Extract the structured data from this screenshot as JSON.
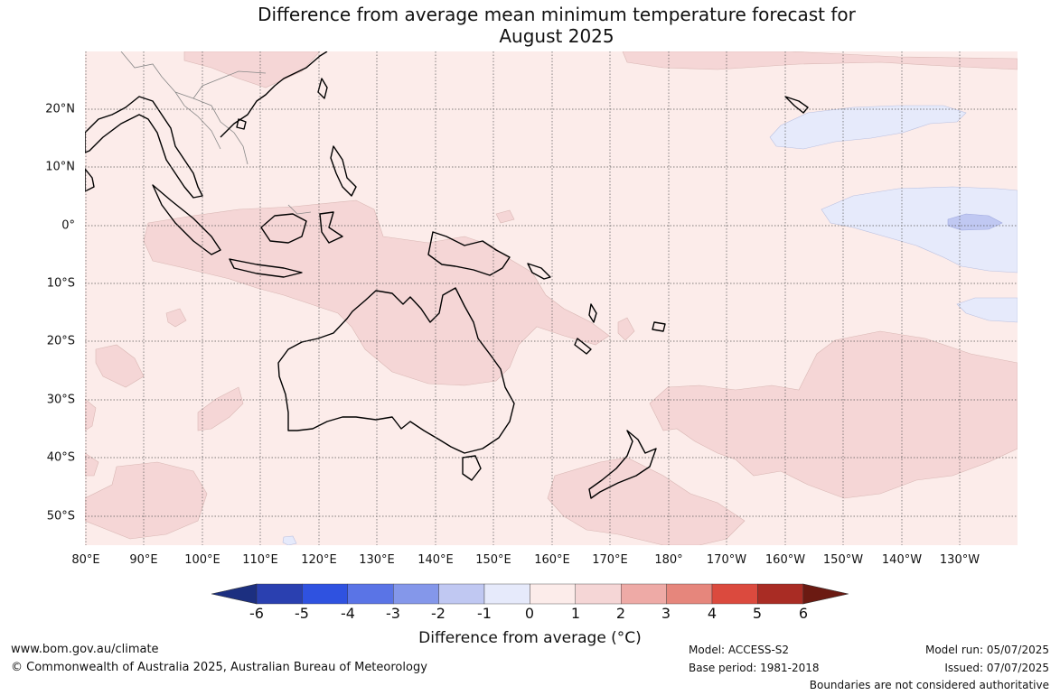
{
  "title_line1": "Difference from average mean minimum temperature forecast for",
  "title_line2": "August 2025",
  "latitude_labels": [
    "20°N",
    "10°N",
    "0°",
    "10°S",
    "20°S",
    "30°S",
    "40°S",
    "50°S"
  ],
  "longitude_labels": [
    "80°E",
    "90°E",
    "100°E",
    "110°E",
    "120°E",
    "130°E",
    "140°E",
    "150°E",
    "160°E",
    "170°E",
    "180°",
    "170°W",
    "160°W",
    "150°W",
    "140°W",
    "130°W"
  ],
  "colorbar": {
    "ticks": [
      "-6",
      "-5",
      "-4",
      "-3",
      "-2",
      "-1",
      "0",
      "1",
      "2",
      "3",
      "4",
      "5",
      "6"
    ],
    "colors": [
      "#1c2f80",
      "#2a40b0",
      "#2f52e0",
      "#5a74e6",
      "#8497ea",
      "#c0c8f2",
      "#e6eafb",
      "#fcecea",
      "#f5d6d6",
      "#eeaaa6",
      "#e6867c",
      "#db4a3e",
      "#a92c24",
      "#6b1a12"
    ],
    "title": "Difference from average (°C)"
  },
  "footer": {
    "website": "www.bom.gov.au/climate",
    "copyright": "© Commonwealth of Australia 2025, Australian Bureau of Meteorology",
    "model": "Model: ACCESS-S2",
    "base_period": "Base period: 1981-2018",
    "model_run": "Model run: 05/07/2025",
    "issued": "Issued: 07/07/2025",
    "disclaimer": "Boundaries are not considered authoritative"
  },
  "map_colors": {
    "background": "#fcecea",
    "warm_anomaly": "#f5d6d6",
    "cool_anomaly": "#e6eafb",
    "cooler_anomaly": "#c0c8f2",
    "coastline": "#000000",
    "borders": "#888888",
    "grid": "#555555"
  }
}
